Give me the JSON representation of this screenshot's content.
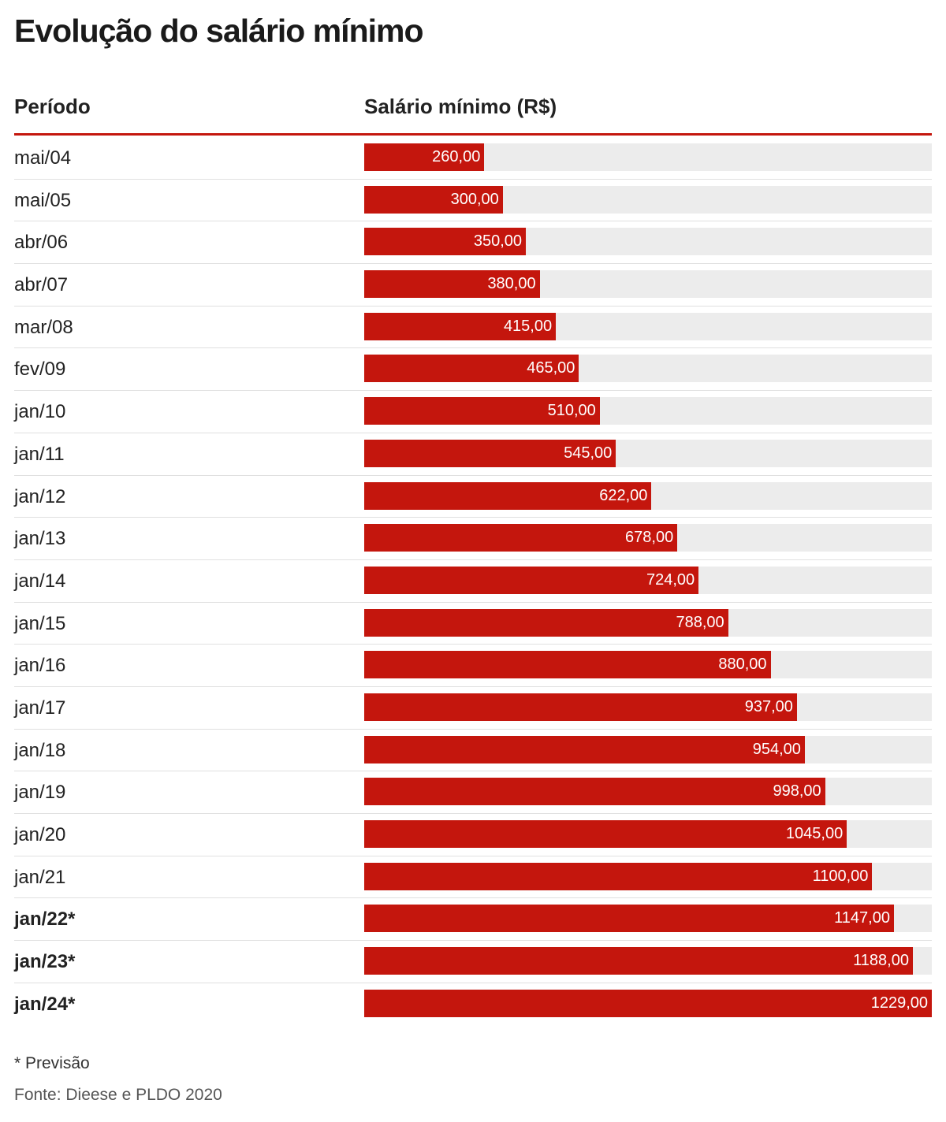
{
  "title": "Evolução do salário mínimo",
  "columns": {
    "period": "Período",
    "value": "Salário mínimo (R$)"
  },
  "footnote": "* Previsão",
  "source": "Fonte: Dieese e PLDO 2020",
  "colors": {
    "bar": "#c4160d",
    "track": "#ececec",
    "rule": "#c4160d"
  },
  "chart_data": {
    "type": "bar",
    "orientation": "horizontal",
    "title": "Evolução do salário mínimo",
    "xlabel": "Salário mínimo (R$)",
    "ylabel": "Período",
    "xlim": [
      0,
      1229
    ],
    "categories": [
      "mai/04",
      "mai/05",
      "abr/06",
      "abr/07",
      "mar/08",
      "fev/09",
      "jan/10",
      "jan/11",
      "jan/12",
      "jan/13",
      "jan/14",
      "jan/15",
      "jan/16",
      "jan/17",
      "jan/18",
      "jan/19",
      "jan/20",
      "jan/21",
      "jan/22*",
      "jan/23*",
      "jan/24*"
    ],
    "values": [
      260,
      300,
      350,
      380,
      415,
      465,
      510,
      545,
      622,
      678,
      724,
      788,
      880,
      937,
      954,
      998,
      1045,
      1100,
      1147,
      1188,
      1229
    ],
    "value_labels": [
      "260,00",
      "300,00",
      "350,00",
      "380,00",
      "415,00",
      "465,00",
      "510,00",
      "545,00",
      "622,00",
      "678,00",
      "724,00",
      "788,00",
      "880,00",
      "937,00",
      "954,00",
      "998,00",
      "1045,00",
      "1100,00",
      "1147,00",
      "1188,00",
      "1229,00"
    ],
    "forecast": [
      false,
      false,
      false,
      false,
      false,
      false,
      false,
      false,
      false,
      false,
      false,
      false,
      false,
      false,
      false,
      false,
      false,
      false,
      true,
      true,
      true
    ]
  }
}
